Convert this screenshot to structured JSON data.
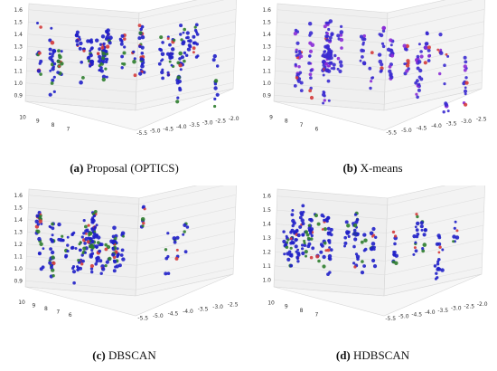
{
  "chart_data": [
    {
      "type": "scatter3d",
      "label": "(a)",
      "title": "Proposal (OPTICS)",
      "z_ticks": [
        "1.6",
        "1.5",
        "1.4",
        "1.3",
        "1.2",
        "1.1",
        "1.0",
        "0.9"
      ],
      "y_ticks": [
        "10",
        "9",
        "8",
        "7"
      ],
      "x_ticks": [
        "-5.5",
        "-5.0",
        "-4.5",
        "-4.0",
        "-3.5",
        "-3.0",
        "-2.5",
        "-2.0"
      ],
      "zlim": [
        0.85,
        1.65
      ],
      "colors": [
        "#1f1fc8",
        "#2e7d2e",
        "#d43a3a"
      ],
      "seed": 11
    },
    {
      "type": "scatter3d",
      "label": "(b)",
      "title": "X-means",
      "z_ticks": [
        "1.6",
        "1.5",
        "1.4",
        "1.3",
        "1.2",
        "1.1",
        "1.0",
        "0.9"
      ],
      "y_ticks": [
        "9",
        "8",
        "7",
        "6"
      ],
      "x_ticks": [
        "-5.5",
        "-5.0",
        "-4.5",
        "-4.0",
        "-3.5",
        "-3.0",
        "-2.5"
      ],
      "zlim": [
        0.85,
        1.65
      ],
      "colors": [
        "#3a2ad0",
        "#8a2bd6",
        "#d43a3a"
      ],
      "seed": 23
    },
    {
      "type": "scatter3d",
      "label": "(c)",
      "title": "DBSCAN",
      "z_ticks": [
        "1.6",
        "1.5",
        "1.4",
        "1.3",
        "1.2",
        "1.1",
        "1.0",
        "0.9"
      ],
      "y_ticks": [
        "10",
        "9",
        "8",
        "7",
        "6"
      ],
      "x_ticks": [
        "-5.5",
        "-5.0",
        "-4.5",
        "-4.0",
        "-3.5",
        "-3.0",
        "-2.5"
      ],
      "zlim": [
        0.85,
        1.65
      ],
      "colors": [
        "#1f1fc8",
        "#2e7d2e",
        "#d43a3a"
      ],
      "seed": 37
    },
    {
      "type": "scatter3d",
      "label": "(d)",
      "title": "HDBSCAN",
      "z_ticks": [
        "1.6",
        "1.5",
        "1.4",
        "1.3",
        "1.2",
        "1.1",
        "1.0"
      ],
      "y_ticks": [
        "10",
        "9",
        "8",
        "7"
      ],
      "x_ticks": [
        "-5.5",
        "-5.0",
        "-4.5",
        "-4.0",
        "-3.5",
        "-3.0",
        "-2.5",
        "-2.0"
      ],
      "zlim": [
        0.95,
        1.65
      ],
      "colors": [
        "#1f1fc8",
        "#2e7d2e",
        "#d43a3a"
      ],
      "seed": 53
    }
  ]
}
